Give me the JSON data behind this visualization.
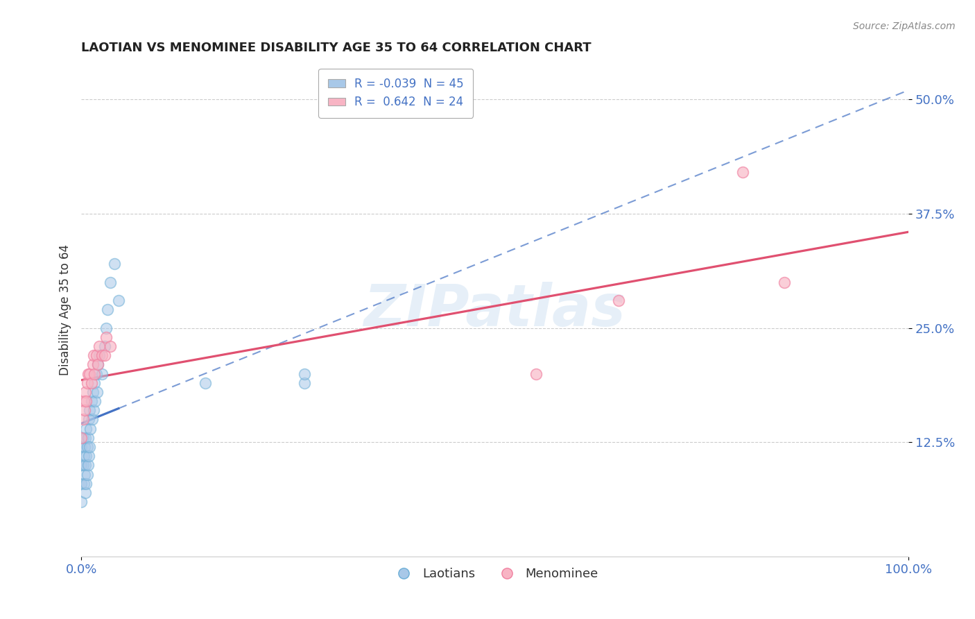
{
  "title": "LAOTIAN VS MENOMINEE DISABILITY AGE 35 TO 64 CORRELATION CHART",
  "source": "Source: ZipAtlas.com",
  "ylabel": "Disability Age 35 to 64",
  "xlim": [
    0.0,
    1.0
  ],
  "ylim": [
    0.0,
    0.54
  ],
  "xtick_labels": [
    "0.0%",
    "100.0%"
  ],
  "ytick_labels": [
    "12.5%",
    "25.0%",
    "37.5%",
    "50.0%"
  ],
  "ytick_positions": [
    0.125,
    0.25,
    0.375,
    0.5
  ],
  "laotian_color_fill": "#a8c8e8",
  "laotian_color_edge": "#6baed6",
  "menominee_color_fill": "#f8b4c4",
  "menominee_color_edge": "#f080a0",
  "laotian_line_color": "#4472c4",
  "menominee_line_color": "#e05070",
  "watermark_text": "ZIPatlas",
  "background_color": "#ffffff",
  "grid_color": "#cccccc",
  "laotian_x": [
    0.0,
    0.0,
    0.0,
    0.0,
    0.002,
    0.002,
    0.003,
    0.003,
    0.004,
    0.004,
    0.005,
    0.005,
    0.005,
    0.006,
    0.006,
    0.006,
    0.007,
    0.007,
    0.008,
    0.008,
    0.009,
    0.009,
    0.01,
    0.01,
    0.011,
    0.012,
    0.013,
    0.014,
    0.015,
    0.016,
    0.017,
    0.018,
    0.019,
    0.02,
    0.022,
    0.025,
    0.028,
    0.03,
    0.032,
    0.035,
    0.04,
    0.045,
    0.15,
    0.27,
    0.27
  ],
  "laotian_y": [
    0.06,
    0.08,
    0.1,
    0.12,
    0.1,
    0.13,
    0.08,
    0.11,
    0.09,
    0.12,
    0.07,
    0.1,
    0.13,
    0.08,
    0.11,
    0.14,
    0.09,
    0.12,
    0.1,
    0.13,
    0.11,
    0.15,
    0.12,
    0.16,
    0.14,
    0.17,
    0.15,
    0.18,
    0.16,
    0.19,
    0.17,
    0.2,
    0.18,
    0.21,
    0.22,
    0.2,
    0.23,
    0.25,
    0.27,
    0.3,
    0.32,
    0.28,
    0.19,
    0.19,
    0.2
  ],
  "menominee_x": [
    0.0,
    0.002,
    0.003,
    0.004,
    0.005,
    0.006,
    0.007,
    0.008,
    0.01,
    0.012,
    0.014,
    0.015,
    0.016,
    0.018,
    0.02,
    0.022,
    0.025,
    0.028,
    0.03,
    0.035,
    0.55,
    0.65,
    0.8,
    0.85
  ],
  "menominee_y": [
    0.13,
    0.15,
    0.17,
    0.16,
    0.18,
    0.17,
    0.19,
    0.2,
    0.2,
    0.19,
    0.21,
    0.22,
    0.2,
    0.22,
    0.21,
    0.23,
    0.22,
    0.22,
    0.24,
    0.23,
    0.2,
    0.28,
    0.42,
    0.3
  ]
}
